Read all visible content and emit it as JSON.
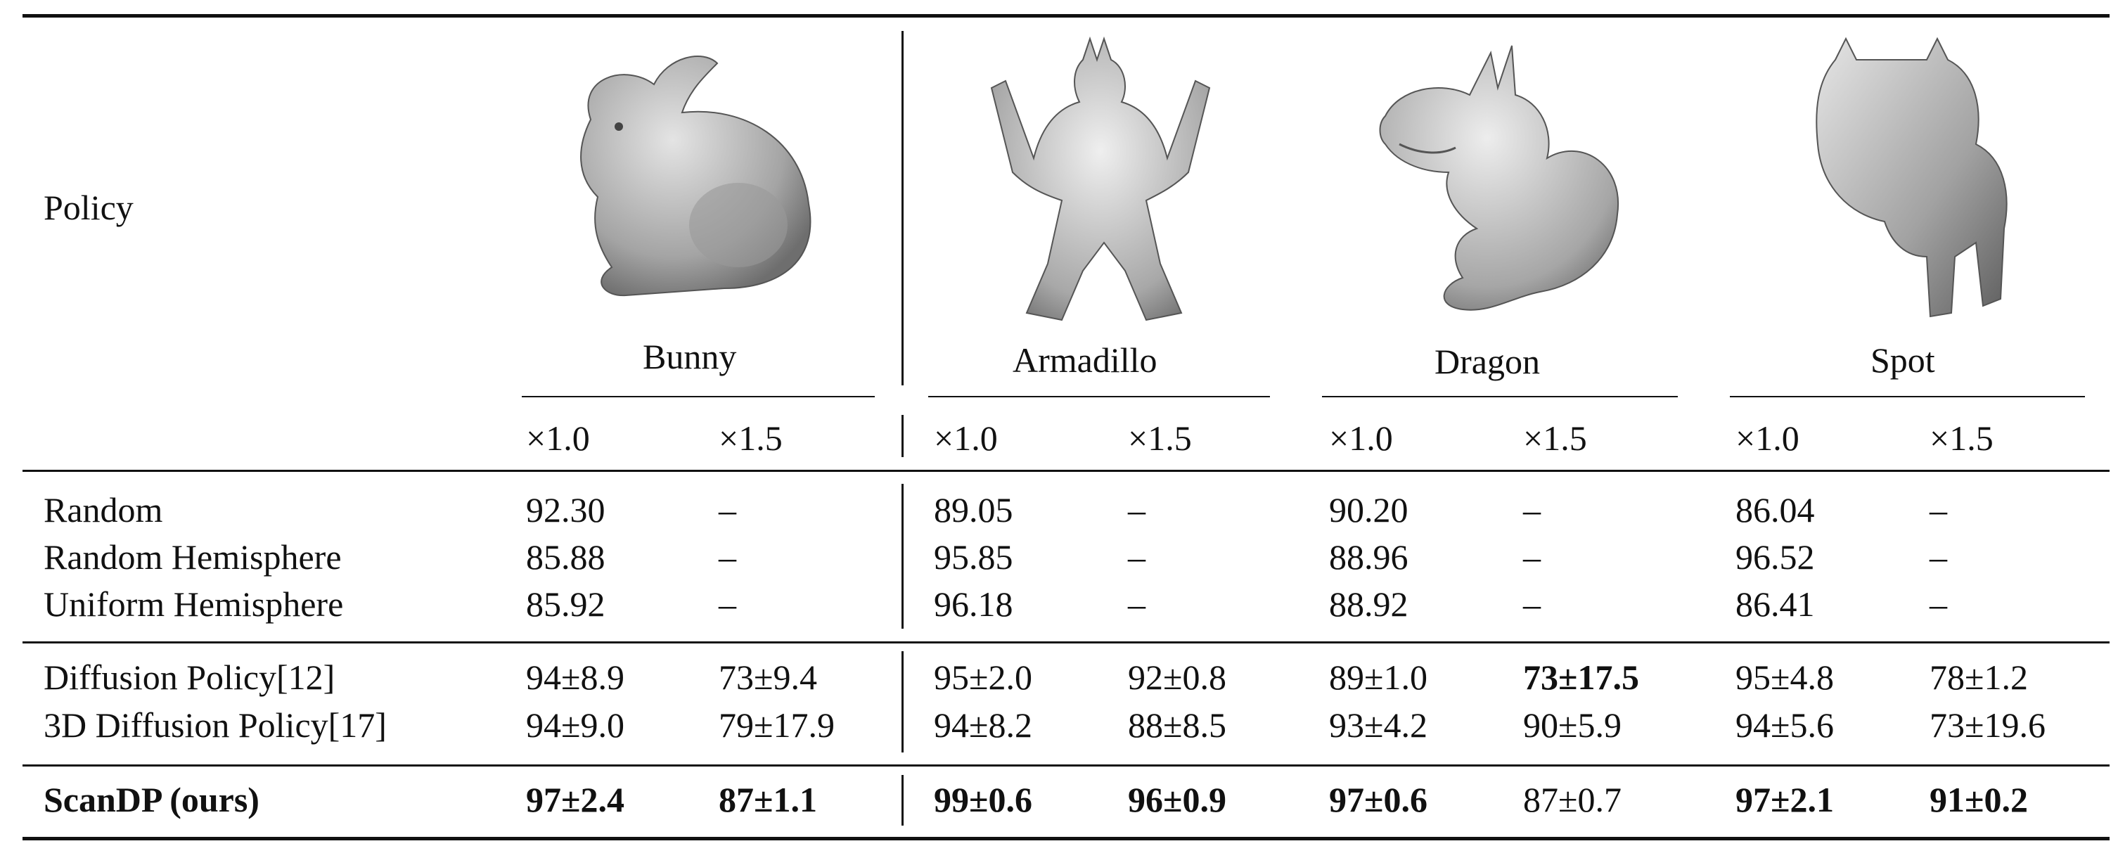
{
  "table": {
    "policy_header": "Policy",
    "objects": [
      "Bunny",
      "Armadillo",
      "Dragon",
      "Spot"
    ],
    "scales": [
      "×1.0",
      "×1.5"
    ],
    "groups": [
      {
        "rows": [
          {
            "name": "Random",
            "cells": [
              "92.30",
              "–",
              "89.05",
              "–",
              "90.20",
              "–",
              "86.04",
              "–"
            ]
          },
          {
            "name": "Random Hemisphere",
            "cells": [
              "85.88",
              "–",
              "95.85",
              "–",
              "88.96",
              "–",
              "96.52",
              "–"
            ]
          },
          {
            "name": "Uniform Hemisphere",
            "cells": [
              "85.92",
              "–",
              "96.18",
              "–",
              "88.92",
              "–",
              "86.41",
              "–"
            ]
          }
        ]
      },
      {
        "rows": [
          {
            "name": "Diffusion Policy[12]",
            "cells": [
              "94±8.9",
              "73±9.4",
              "95±2.0",
              "92±0.8",
              "89±1.0",
              "73±17.5",
              "95±4.8",
              "78±1.2"
            ]
          },
          {
            "name": "3D Diffusion Policy[17]",
            "cells": [
              "94±9.0",
              "79±17.9",
              "94±8.2",
              "88±8.5",
              "93±4.2",
              "90±5.9",
              "94±5.6",
              "73±19.6"
            ]
          }
        ]
      },
      {
        "rows": [
          {
            "name": "ScanDP (ours)",
            "cells": [
              "97±2.4",
              "87±1.1",
              "99±0.6",
              "96±0.9",
              "97±0.6",
              "87±0.7",
              "97±2.1",
              "91±0.2"
            ]
          }
        ]
      }
    ],
    "bold_cells": {
      "r3c5": true,
      "r5c0": true,
      "r5c1": true,
      "r5c2": true,
      "r5c3": true,
      "r5c4": true,
      "r5c6": true,
      "r5c7": true
    },
    "icons": [
      "bunny-3d-model-icon",
      "armadillo-3d-model-icon",
      "dragon-3d-model-icon",
      "spot-3d-model-icon"
    ]
  }
}
